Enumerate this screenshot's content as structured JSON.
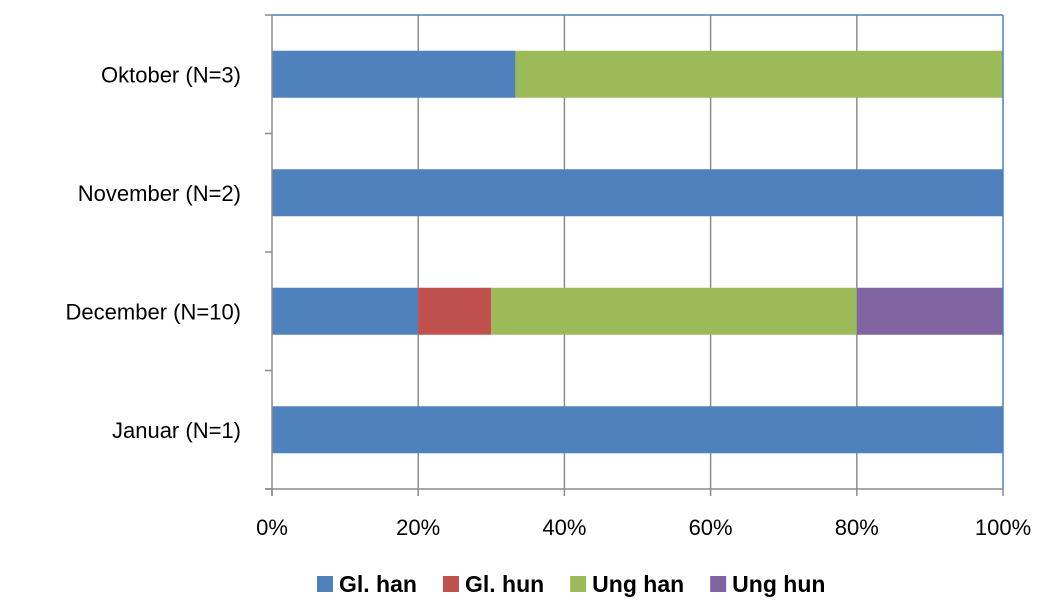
{
  "chart_data": {
    "type": "bar",
    "orientation": "horizontal",
    "stacked": "percent",
    "categories": [
      "Oktober (N=3)",
      "November (N=2)",
      "December (N=10)",
      "Januar (N=1)"
    ],
    "series": [
      {
        "name": "Gl. han",
        "color": "#4F81BD",
        "values": [
          33.3,
          100,
          20,
          100
        ]
      },
      {
        "name": "Gl. hun",
        "color": "#C0504D",
        "values": [
          0,
          0,
          10,
          0
        ]
      },
      {
        "name": "Ung han",
        "color": "#9BBB59",
        "values": [
          66.7,
          0,
          50,
          0
        ]
      },
      {
        "name": "Ung hun",
        "color": "#8064A2",
        "values": [
          0,
          0,
          20,
          0
        ]
      }
    ],
    "x_ticks": [
      "0%",
      "20%",
      "40%",
      "60%",
      "80%",
      "100%"
    ],
    "xlim": [
      0,
      100
    ],
    "title": "",
    "xlabel": "",
    "ylabel": "",
    "grid": "vertical",
    "legend": "bottom"
  }
}
